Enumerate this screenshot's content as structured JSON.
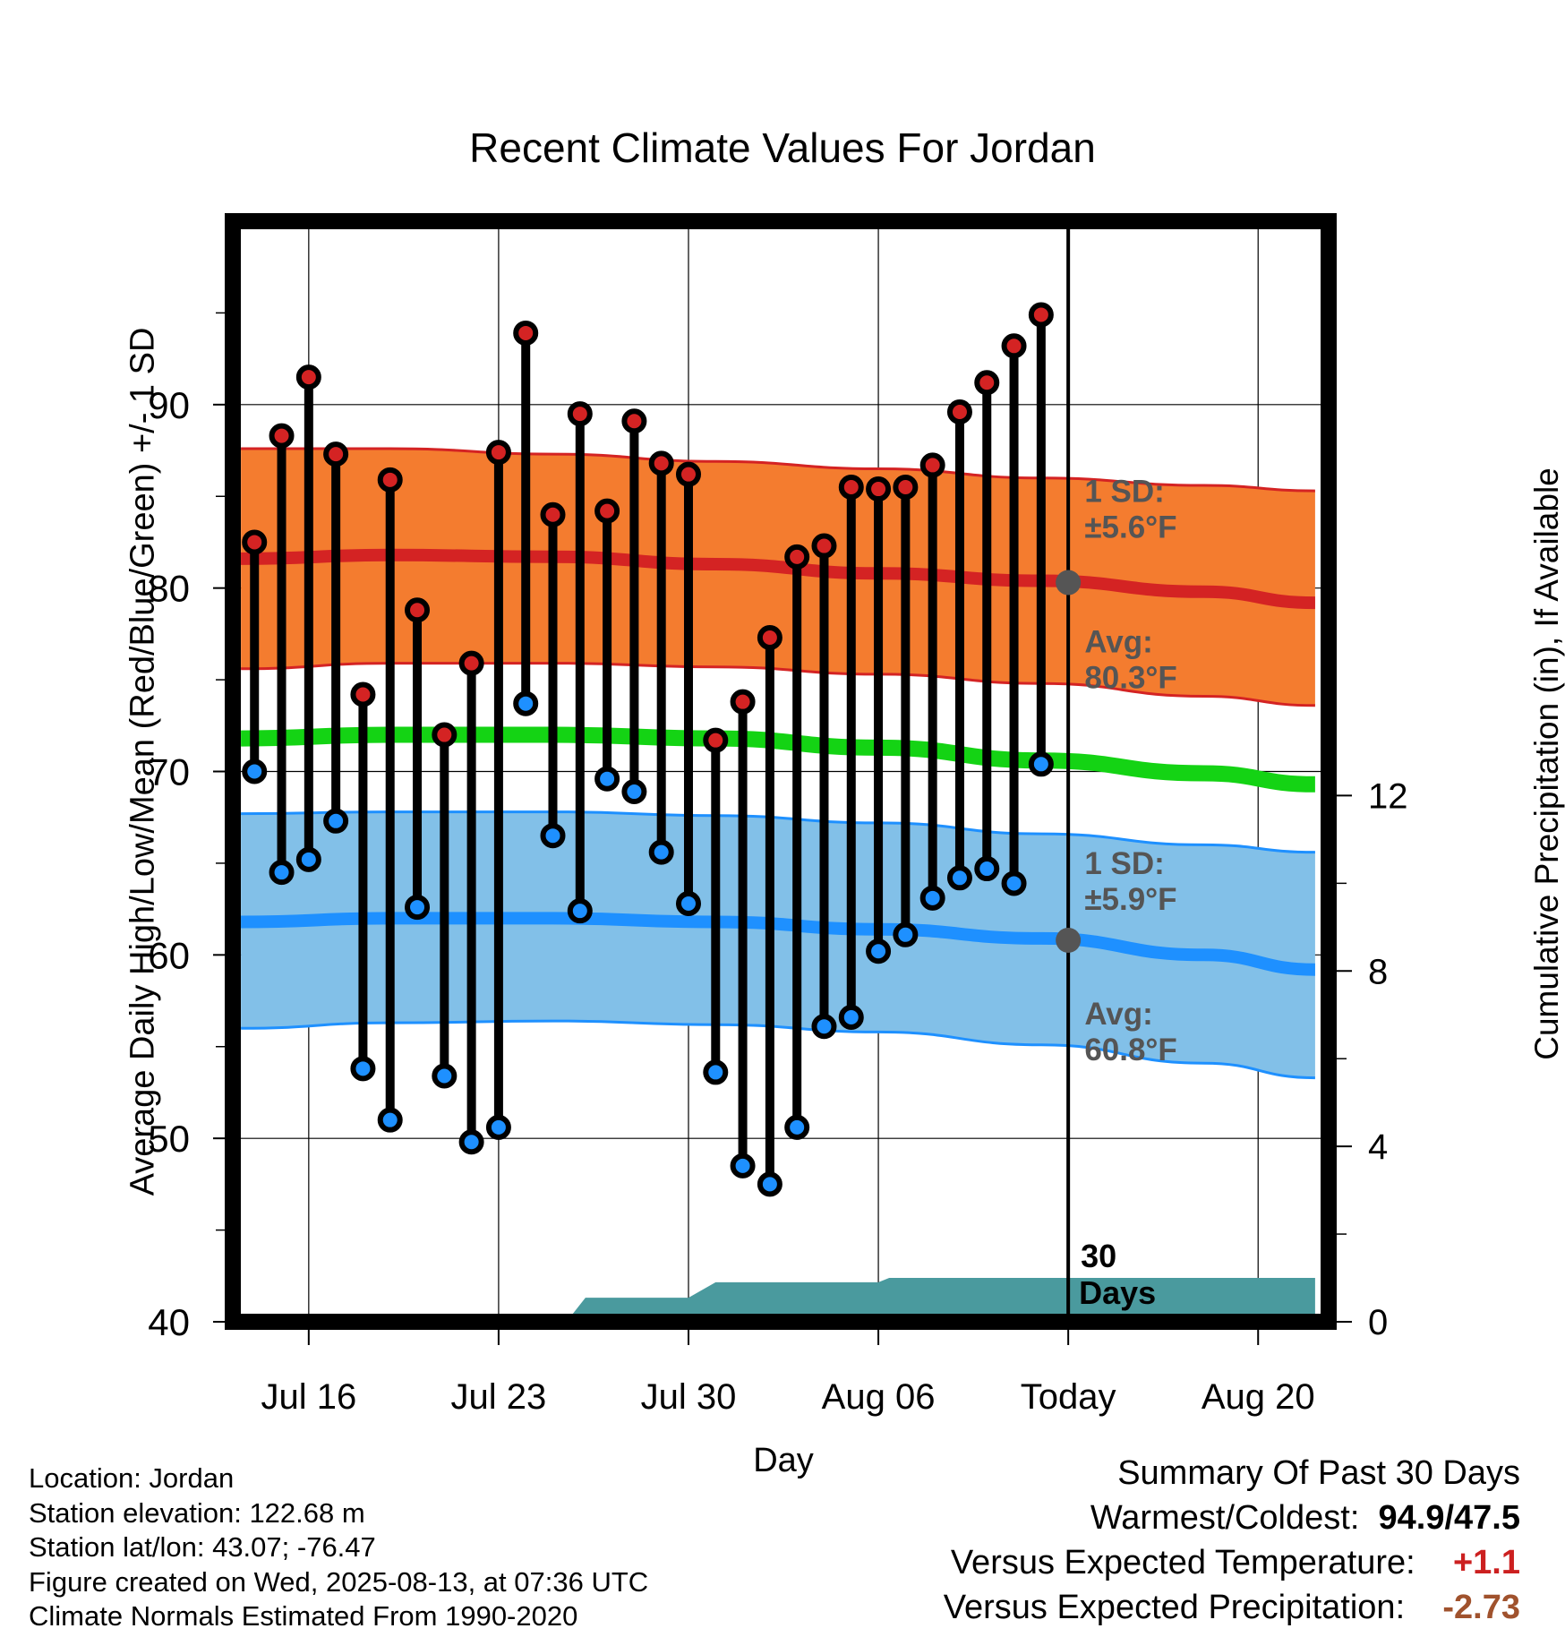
{
  "title": "Recent Climate Values For Jordan",
  "xlabel": "Day",
  "ylabel": "Average Daily High/Low/Mean (Red/Blue/Green) +/- 1 SD",
  "y2label": "Cumulative Precipitation (in), If Available",
  "info": {
    "location": "Location: Jordan",
    "elevation": "Station elevation: 122.68 m",
    "latlon": "Station lat/lon: 43.07; -76.47",
    "created": "Figure created on Wed, 2025-08-13, at 07:36 UTC",
    "normals": "Climate Normals Estimated From 1990-2020"
  },
  "summary": {
    "heading": "Summary Of Past 30 Days",
    "warm_cold_label": "Warmest/Coldest:",
    "warm_cold_value": "94.9/47.5",
    "temp_label": "Versus Expected Temperature:",
    "temp_value": "+1.1",
    "precip_label": "Versus Expected Precipitation:",
    "precip_value": "-2.73"
  },
  "colors": {
    "high_band": "#f47c2f",
    "high_line": "#d42323",
    "low_band": "#82c0e8",
    "low_line": "#1e90ff",
    "mean_line": "#14d314",
    "precip": "#4a9a9e",
    "high_marker": "#d42323",
    "low_marker": "#1e90ff",
    "avg_marker": "#555555",
    "annotation": "#555555",
    "temp_anomaly": "#cc2020",
    "precip_anomaly": "#a0522d"
  },
  "chart_data": {
    "type": "line",
    "x_ticks": [
      "Jul 16",
      "Jul 23",
      "Jul 30",
      "Aug 06",
      "Today",
      "Aug 20"
    ],
    "x_tick_days": [
      1,
      8,
      15,
      22,
      29,
      36
    ],
    "xlim": [
      -1.8,
      38.6
    ],
    "ylim": [
      40,
      100
    ],
    "y_ticks": [
      40,
      50,
      60,
      70,
      80,
      90
    ],
    "y2lim": [
      0,
      25.1
    ],
    "y2_ticks": [
      0,
      4,
      8,
      12
    ],
    "grid": true,
    "today_marker": {
      "day": 29,
      "label1": "30",
      "label2": "Days"
    },
    "days": [
      -1,
      0,
      1,
      2,
      3,
      4,
      5,
      6,
      7,
      8,
      9,
      10,
      11,
      12,
      13,
      14,
      15,
      16,
      17,
      18,
      19,
      20,
      21,
      22,
      23,
      24,
      25,
      26,
      27,
      28
    ],
    "daily_high": [
      82.5,
      88.3,
      91.5,
      87.3,
      74.2,
      85.9,
      78.8,
      72.0,
      75.9,
      87.4,
      93.9,
      84.0,
      89.5,
      84.2,
      89.1,
      86.8,
      86.2,
      71.7,
      73.8,
      77.3,
      81.7,
      82.3,
      85.5,
      85.4,
      85.5,
      86.7,
      89.6,
      91.2,
      93.2,
      94.9
    ],
    "daily_low": [
      70.0,
      64.5,
      65.2,
      67.3,
      53.8,
      51.0,
      62.6,
      53.4,
      49.8,
      50.6,
      73.7,
      66.5,
      62.4,
      69.6,
      68.9,
      65.6,
      62.8,
      53.6,
      48.5,
      47.5,
      50.6,
      56.1,
      56.6,
      60.2,
      61.1,
      63.1,
      64.2,
      64.7,
      63.9,
      70.4
    ],
    "normals": {
      "days": [
        -1.5,
        4,
        10,
        16,
        22,
        28,
        34,
        38.1
      ],
      "high_avg": [
        81.6,
        81.8,
        81.7,
        81.3,
        80.8,
        80.4,
        79.8,
        79.2
      ],
      "high_sd_upper": [
        87.6,
        87.6,
        87.3,
        86.9,
        86.5,
        86.0,
        85.6,
        85.3
      ],
      "high_sd_lower": [
        75.6,
        75.9,
        75.9,
        75.7,
        75.3,
        74.8,
        74.1,
        73.6
      ],
      "mean_avg": [
        71.8,
        72.0,
        72.0,
        71.8,
        71.3,
        70.6,
        69.9,
        69.3
      ],
      "low_avg": [
        61.8,
        62.0,
        62.0,
        61.8,
        61.4,
        60.9,
        60.0,
        59.2
      ],
      "low_sd_upper": [
        67.7,
        67.8,
        67.8,
        67.6,
        67.2,
        66.6,
        66.0,
        65.6
      ],
      "low_sd_lower": [
        56.0,
        56.3,
        56.4,
        56.2,
        55.8,
        55.1,
        54.1,
        53.3
      ]
    },
    "precip": {
      "days": [
        10.5,
        11.2,
        15,
        16,
        22,
        22.4,
        38.1
      ],
      "values": [
        0,
        0.55,
        0.55,
        0.9,
        0.9,
        1.0,
        1.0
      ]
    },
    "annotations": [
      {
        "line1": "1 SD:",
        "line2": "±5.6°F",
        "day": 29.6,
        "y": 84.7
      },
      {
        "line1": "Avg:",
        "line2": "80.3°F",
        "day": 29.6,
        "y": 76.5
      },
      {
        "line1": "1 SD:",
        "line2": "±5.9°F",
        "day": 29.6,
        "y": 64.4
      },
      {
        "line1": "Avg:",
        "line2": "60.8°F",
        "day": 29.6,
        "y": 56.2
      }
    ],
    "avg_markers": [
      {
        "day": 29,
        "y": 80.3
      },
      {
        "day": 29,
        "y": 60.8
      }
    ]
  }
}
